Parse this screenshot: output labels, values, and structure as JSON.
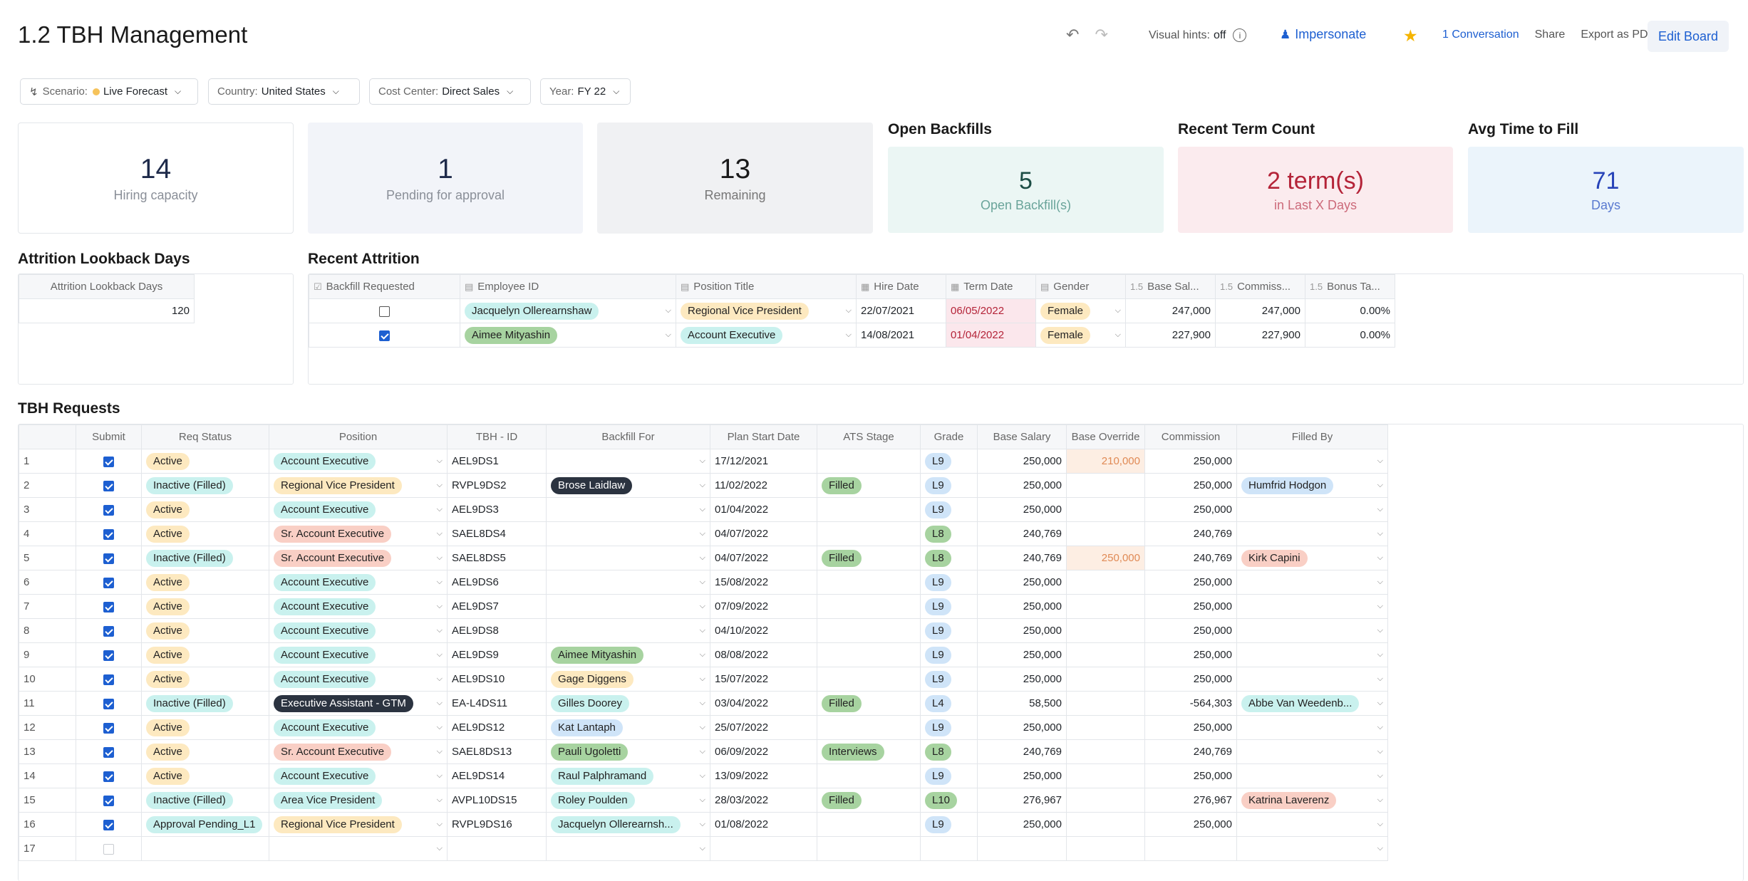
{
  "header": {
    "title": "1.2 TBH Management",
    "visual_hints_label": "Visual hints:",
    "visual_hints_value": "off",
    "impersonate": "Impersonate",
    "conversation": "1 Conversation",
    "share": "Share",
    "export": "Export as PDF",
    "edit_board": "Edit Board"
  },
  "filters": {
    "scenario_label": "Scenario:",
    "scenario_value": "Live Forecast",
    "country_label": "Country:",
    "country_value": "United States",
    "cost_center_label": "Cost Center:",
    "cost_center_value": "Direct Sales",
    "year_label": "Year:",
    "year_value": "FY 22"
  },
  "kpis": {
    "hiring_capacity": {
      "value": "14",
      "label": "Hiring capacity"
    },
    "pending": {
      "value": "1",
      "label": "Pending for approval"
    },
    "remaining": {
      "value": "13",
      "label": "Remaining"
    },
    "open_backfills": {
      "title": "Open Backfills",
      "value": "5",
      "label": "Open Backfill(s)"
    },
    "recent_term": {
      "title": "Recent Term Count",
      "value": "2 term(s)",
      "label": "in Last X Days"
    },
    "avg_time": {
      "title": "Avg Time to Fill",
      "value": "71",
      "label": "Days"
    }
  },
  "attrition_lookback": {
    "title": "Attrition Lookback Days",
    "column": "Attrition Lookback Days",
    "value": "120"
  },
  "recent_attrition": {
    "title": "Recent Attrition",
    "columns": [
      "Backfill Requested",
      "Employee ID",
      "Position Title",
      "Hire Date",
      "Term Date",
      "Gender",
      "Base Sal...",
      "Commiss...",
      "Bonus Ta..."
    ],
    "rows": [
      {
        "backfill": false,
        "employee": "Jacquelyn Ollerearnshaw",
        "position": "Regional Vice President",
        "hire": "22/07/2021",
        "term": "06/05/2022",
        "gender": "Female",
        "base": "247,000",
        "commission": "247,000",
        "bonus": "0.00%"
      },
      {
        "backfill": true,
        "employee": "Aimee Mityashin",
        "position": "Account Executive",
        "hire": "14/08/2021",
        "term": "01/04/2022",
        "gender": "Female",
        "base": "227,900",
        "commission": "227,900",
        "bonus": "0.00%"
      }
    ]
  },
  "tbh_requests": {
    "title": "TBH Requests",
    "columns": [
      "",
      "Submit",
      "Req Status",
      "Position",
      "TBH - ID",
      "Backfill For",
      "Plan Start Date",
      "ATS Stage",
      "Grade",
      "Base Salary",
      "Base Override",
      "Commission",
      "Filled By"
    ],
    "rows": [
      {
        "n": "1",
        "submit": true,
        "status": "Active",
        "position": "Account Executive",
        "id": "AEL9DS1",
        "backfill": "",
        "start": "17/12/2021",
        "ats": "",
        "grade": "L9",
        "base": "250,000",
        "override": "210,000",
        "commission": "250,000",
        "filled": ""
      },
      {
        "n": "2",
        "submit": true,
        "status": "Inactive (Filled)",
        "position": "Regional Vice President",
        "id": "RVPL9DS2",
        "backfill": "Brose Laidlaw",
        "start": "11/02/2022",
        "ats": "Filled",
        "grade": "L9",
        "base": "250,000",
        "override": "",
        "commission": "250,000",
        "filled": "Humfrid Hodgon"
      },
      {
        "n": "3",
        "submit": true,
        "status": "Active",
        "position": "Account Executive",
        "id": "AEL9DS3",
        "backfill": "",
        "start": "01/04/2022",
        "ats": "",
        "grade": "L9",
        "base": "250,000",
        "override": "",
        "commission": "250,000",
        "filled": ""
      },
      {
        "n": "4",
        "submit": true,
        "status": "Active",
        "position": "Sr. Account Executive",
        "id": "SAEL8DS4",
        "backfill": "",
        "start": "04/07/2022",
        "ats": "",
        "grade": "L8",
        "base": "240,769",
        "override": "",
        "commission": "240,769",
        "filled": ""
      },
      {
        "n": "5",
        "submit": true,
        "status": "Inactive (Filled)",
        "position": "Sr. Account Executive",
        "id": "SAEL8DS5",
        "backfill": "",
        "start": "04/07/2022",
        "ats": "Filled",
        "grade": "L8",
        "base": "240,769",
        "override": "250,000",
        "commission": "240,769",
        "filled": "Kirk Capini"
      },
      {
        "n": "6",
        "submit": true,
        "status": "Active",
        "position": "Account Executive",
        "id": "AEL9DS6",
        "backfill": "",
        "start": "15/08/2022",
        "ats": "",
        "grade": "L9",
        "base": "250,000",
        "override": "",
        "commission": "250,000",
        "filled": ""
      },
      {
        "n": "7",
        "submit": true,
        "status": "Active",
        "position": "Account Executive",
        "id": "AEL9DS7",
        "backfill": "",
        "start": "07/09/2022",
        "ats": "",
        "grade": "L9",
        "base": "250,000",
        "override": "",
        "commission": "250,000",
        "filled": ""
      },
      {
        "n": "8",
        "submit": true,
        "status": "Active",
        "position": "Account Executive",
        "id": "AEL9DS8",
        "backfill": "",
        "start": "04/10/2022",
        "ats": "",
        "grade": "L9",
        "base": "250,000",
        "override": "",
        "commission": "250,000",
        "filled": ""
      },
      {
        "n": "9",
        "submit": true,
        "status": "Active",
        "position": "Account Executive",
        "id": "AEL9DS9",
        "backfill": "Aimee Mityashin",
        "start": "08/08/2022",
        "ats": "",
        "grade": "L9",
        "base": "250,000",
        "override": "",
        "commission": "250,000",
        "filled": ""
      },
      {
        "n": "10",
        "submit": true,
        "status": "Active",
        "position": "Account Executive",
        "id": "AEL9DS10",
        "backfill": "Gage Diggens",
        "start": "15/07/2022",
        "ats": "",
        "grade": "L9",
        "base": "250,000",
        "override": "",
        "commission": "250,000",
        "filled": ""
      },
      {
        "n": "11",
        "submit": true,
        "status": "Inactive (Filled)",
        "position": "Executive Assistant - GTM",
        "id": "EA-L4DS11",
        "backfill": "Gilles Doorey",
        "start": "03/04/2022",
        "ats": "Filled",
        "grade": "L4",
        "base": "58,500",
        "override": "",
        "commission": "-564,303",
        "filled": "Abbe Van Weedenb..."
      },
      {
        "n": "12",
        "submit": true,
        "status": "Active",
        "position": "Account Executive",
        "id": "AEL9DS12",
        "backfill": "Kat Lantaph",
        "start": "25/07/2022",
        "ats": "",
        "grade": "L9",
        "base": "250,000",
        "override": "",
        "commission": "250,000",
        "filled": ""
      },
      {
        "n": "13",
        "submit": true,
        "status": "Active",
        "position": "Sr. Account Executive",
        "id": "SAEL8DS13",
        "backfill": "Pauli Ugoletti",
        "start": "06/09/2022",
        "ats": "Interviews",
        "grade": "L8",
        "base": "240,769",
        "override": "",
        "commission": "240,769",
        "filled": ""
      },
      {
        "n": "14",
        "submit": true,
        "status": "Active",
        "position": "Account Executive",
        "id": "AEL9DS14",
        "backfill": "Raul Palphramand",
        "start": "13/09/2022",
        "ats": "",
        "grade": "L9",
        "base": "250,000",
        "override": "",
        "commission": "250,000",
        "filled": ""
      },
      {
        "n": "15",
        "submit": true,
        "status": "Inactive (Filled)",
        "position": "Area Vice President",
        "id": "AVPL10DS15",
        "backfill": "Roley Poulden",
        "start": "28/03/2022",
        "ats": "Filled",
        "grade": "L10",
        "base": "276,967",
        "override": "",
        "commission": "276,967",
        "filled": "Katrina Laverenz"
      },
      {
        "n": "16",
        "submit": true,
        "status": "Approval Pending_L1",
        "position": "Regional Vice President",
        "id": "RVPL9DS16",
        "backfill": "Jacquelyn Ollerearnsh...",
        "start": "01/08/2022",
        "ats": "",
        "grade": "L9",
        "base": "250,000",
        "override": "",
        "commission": "250,000",
        "filled": ""
      },
      {
        "n": "17",
        "submit": false,
        "status": "",
        "position": "",
        "id": "",
        "backfill": "",
        "start": "",
        "ats": "",
        "grade": "",
        "base": "",
        "override": "",
        "commission": "",
        "filled": ""
      }
    ]
  },
  "colors": {
    "accent": "#1d5fd1",
    "active_pill": "#fde9c0",
    "inactive_pill": "#c9f1ee",
    "pending_pill": "#c9f1ee",
    "ae_pill": "#c9f1ee",
    "rvp_pill": "#fde9c0",
    "sae_pill": "#f9cfc5",
    "avp_pill": "#c9f1ee",
    "ea_pill": "#2b3340",
    "filled_pill": "#a7d3a0",
    "interviews_pill": "#a7d3a0",
    "grade_l9": "#cfe4f8",
    "grade_l8": "#a7d3a0",
    "grade_l4": "#cfe4f8",
    "grade_l10": "#a7d3a0",
    "override_cell": "#fdeee3"
  }
}
